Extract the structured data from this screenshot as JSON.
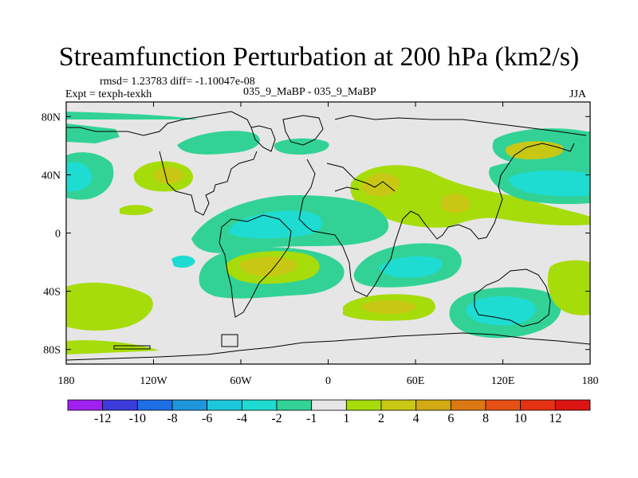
{
  "title": "Streamfunction Perturbation at 200 hPa (km2/s)",
  "stats": "rmsd= 1.23783 diff= -1.10047e-08",
  "experiment": "Expt = texph-texkh",
  "comparison": "035_9_MaBP - 035_9_MaBP",
  "season": "JJA",
  "colors": {
    "neutral": "#e6e6e6",
    "pos_1_2": "#a6dc0a",
    "pos_2_4": "#c8c814",
    "neg_m2_m1": "#32d296",
    "neg_m4_m2": "#1edcd2",
    "coast": "#000000"
  },
  "chart_data": {
    "type": "heatmap",
    "projection": "cylindrical-equidistant",
    "lon_range": [
      -180,
      180
    ],
    "lat_range": [
      -90,
      90
    ],
    "x_tick_labels": [
      "180",
      "120W",
      "60W",
      "0",
      "60E",
      "120E",
      "180"
    ],
    "x_tick_values": [
      -180,
      -120,
      -60,
      0,
      60,
      120,
      180
    ],
    "y_tick_labels": [
      "80N",
      "40N",
      "0",
      "40S",
      "80S"
    ],
    "y_tick_values": [
      80,
      40,
      0,
      -40,
      -80
    ],
    "colorbar": {
      "labels": [
        "-12",
        "-10",
        "-8",
        "-6",
        "-4",
        "-2",
        "-1",
        "1",
        "2",
        "4",
        "6",
        "8",
        "10",
        "12"
      ],
      "colors": [
        "#a020f0",
        "#3c3cdc",
        "#1e6ee6",
        "#1e96dc",
        "#1ec8dc",
        "#1edcd2",
        "#32d296",
        "#e6e6e6",
        "#a6dc0a",
        "#c8c814",
        "#d2aa14",
        "#dc7814",
        "#e65014",
        "#e63214",
        "#dc1414"
      ]
    },
    "regions": [
      {
        "name": "neg-north-pacific-east",
        "level": "-2..-1",
        "lon": [
          -180,
          -155
        ],
        "lat": [
          63,
          80
        ]
      },
      {
        "name": "neg-north-atlantic",
        "level": "-2..-1",
        "lon": [
          -95,
          -40
        ],
        "lat": [
          50,
          72
        ]
      },
      {
        "name": "neg-arctic-europe",
        "level": "-2..-1",
        "lon": [
          -25,
          5
        ],
        "lat": [
          55,
          72
        ]
      },
      {
        "name": "neg-north-pacific-west",
        "level": "-4..-2",
        "lon": [
          -180,
          -140
        ],
        "lat": [
          30,
          58
        ]
      },
      {
        "name": "pos-north-pacific-center",
        "level": "2..4",
        "lon": [
          -125,
          -110
        ],
        "lat": [
          35,
          48
        ]
      },
      {
        "name": "pos-tropical-east-pacific",
        "level": "1..2",
        "lon": [
          -140,
          -120
        ],
        "lat": [
          10,
          20
        ]
      },
      {
        "name": "pos-eurasia",
        "level": "1..2",
        "lon": [
          15,
          170
        ],
        "lat": [
          10,
          50
        ]
      },
      {
        "name": "pos-east-asia-core",
        "level": "2..4",
        "lon": [
          25,
          45
        ],
        "lat": [
          28,
          42
        ]
      },
      {
        "name": "pos-northeast-asia",
        "level": "2..4",
        "lon": [
          120,
          175
        ],
        "lat": [
          45,
          75
        ]
      },
      {
        "name": "neg-north-pacific-asia",
        "level": "-4..-2",
        "lon": [
          125,
          180
        ],
        "lat": [
          20,
          45
        ]
      },
      {
        "name": "neg-equatorial-atlantic",
        "level": "-4..-2",
        "lon": [
          -85,
          -30
        ],
        "lat": [
          -10,
          10
        ]
      },
      {
        "name": "pos-south-america",
        "level": "2..4",
        "lon": [
          -80,
          -20
        ],
        "lat": [
          -40,
          -15
        ]
      },
      {
        "name": "neg-indian-ocean",
        "level": "-4..-2",
        "lon": [
          30,
          100
        ],
        "lat": [
          -45,
          -10
        ]
      },
      {
        "name": "pos-south-atlantic-africa",
        "level": "2..4",
        "lon": [
          10,
          60
        ],
        "lat": [
          -60,
          -40
        ]
      },
      {
        "name": "neg-australia-south",
        "level": "-4..-2",
        "lon": [
          80,
          150
        ],
        "lat": [
          -70,
          -40
        ]
      },
      {
        "name": "pos-south-pacific",
        "level": "1..2",
        "lon": [
          -180,
          -120
        ],
        "lat": [
          -75,
          -40
        ]
      }
    ]
  }
}
